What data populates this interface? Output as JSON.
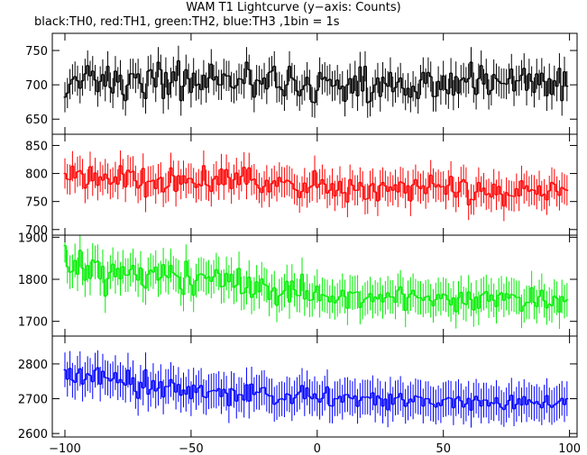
{
  "figure": {
    "title": "WAM T1 Lightcurve (y−axis: Counts)",
    "subtitle": "black:TH0, red:TH1, green:TH2, blue:TH3 ,1bin = 1s"
  },
  "chart_data": {
    "type": "line",
    "style": "histogram steps with vertical error bars",
    "x_range": [
      -100,
      99
    ],
    "xlim": [
      -105,
      103
    ],
    "x_ticks": [
      -100,
      -50,
      0,
      50,
      100
    ],
    "bin_size_s": 1,
    "grid": false,
    "series": [
      {
        "name": "TH0",
        "color": "#000000",
        "ylim": [
          628,
          775
        ],
        "y_ticks": [
          650,
          700,
          750
        ],
        "mean": 700,
        "error": 22,
        "values": [
          682,
          688,
          701,
          708,
          712,
          706,
          695,
          706,
          716,
          728,
          713,
          720,
          707,
          690,
          705,
          715,
          698,
          727,
          696,
          688,
          720,
          704,
          714,
          686,
          677,
          700,
          716,
          716,
          710,
          716,
          702,
          689,
          680,
          720,
          722,
          710,
          697,
          733,
          722,
          680,
          718,
          686,
          703,
          719,
          706,
          735,
          677,
          698,
          722,
          709,
          689,
          717,
          699,
          701,
          693,
          714,
          696,
          710,
          730,
          707,
          712,
          700,
          700,
          716,
          713,
          713,
          697,
          695,
          699,
          709,
          708,
          702,
          733,
          722,
          700,
          682,
          707,
          706,
          701,
          710,
          694,
          718,
          720,
          727,
          696,
          697,
          693,
          684,
          700,
          727,
          710,
          707,
          691,
          684,
          693,
          699,
          711,
          700,
          675,
          674,
          692,
          718,
          708,
          711,
          706,
          708,
          698,
          699,
          707,
          694,
          698,
          676,
          700,
          709,
          688,
          713,
          684,
          726,
          691,
          727,
          674,
          676,
          689,
          700,
          710,
          683,
          711,
          702,
          698,
          718,
          690,
          696,
          704,
          710,
          695,
          685,
          695,
          682,
          698,
          690,
          680,
          707,
          718,
          702,
          718,
          712,
          683,
          683,
          705,
          693,
          713,
          693,
          687,
          717,
          685,
          712,
          688,
          707,
          710,
          704,
          709,
          733,
          696,
          686,
          709,
          728,
          701,
          716,
          686,
          692,
          715,
          709,
          705,
          702,
          702,
          701,
          709,
          723,
          691,
          706,
          706,
          714,
          724,
          692,
          716,
          705,
          689,
          716,
          700,
          717,
          705,
          684,
          709,
          686,
          706,
          698,
          724,
          677,
          719,
          698
        ]
      },
      {
        "name": "TH1",
        "color": "#ff0000",
        "ylim": [
          690,
          870
        ],
        "y_ticks": [
          700,
          750,
          800,
          850
        ],
        "mean": 777,
        "error": 27,
        "values": [
          800,
          790,
          789,
          813,
          792,
          803,
          805,
          799,
          774,
          781,
          812,
          787,
          801,
          779,
          794,
          788,
          799,
          791,
          781,
          784,
          794,
          781,
          814,
          799,
          776,
          806,
          802,
          804,
          787,
          774,
          779,
          809,
          758,
          786,
          786,
          788,
          773,
          790,
          793,
          767,
          774,
          777,
          810,
          796,
          768,
          796,
          781,
          796,
          783,
          791,
          791,
          783,
          775,
          781,
          778,
          814,
          780,
          778,
          768,
          790,
          795,
          780,
          808,
          780,
          807,
          793,
          773,
          789,
          801,
          780,
          795,
          811,
          781,
          810,
          788,
          790,
          780,
          774,
          766,
          777,
          788,
          767,
          782,
          787,
          777,
          793,
          785,
          784,
          788,
          786,
          782,
          772,
          770,
          757,
          768,
          783,
          766,
          775,
          778,
          805,
          775,
          781,
          789,
          781,
          765,
          770,
          782,
          760,
          770,
          786,
          765,
          766,
          749,
          789,
          779,
          770,
          770,
          784,
          777,
          754,
          755,
          778,
          782,
          767,
          751,
          779,
          784,
          778,
          768,
          776,
          770,
          780,
          767,
          785,
          783,
          765,
          778,
          751,
          780,
          789,
          777,
          773,
          778,
          764,
          775,
          797,
          782,
          776,
          780,
          776,
          777,
          763,
          779,
          795,
          767,
          758,
          767,
          785,
          789,
          784,
          744,
          754,
          753,
          767,
          784,
          768,
          774,
          762,
          764,
          758,
          781,
          762,
          777,
          763,
          742,
          766,
          761,
          760,
          759,
          773,
          760,
          787,
          773,
          778,
          768,
          771,
          770,
          763,
          778,
          760,
          763,
          753,
          769,
          784,
          781,
          768,
          761,
          775,
          772,
          770
        ]
      },
      {
        "name": "TH2",
        "color": "#00ee00",
        "ylim": [
          1665,
          1905
        ],
        "y_ticks": [
          1700,
          1800,
          1900
        ],
        "mean": 1770,
        "error": 40,
        "values": [
          1880,
          1830,
          1817,
          1819,
          1845,
          1812,
          1869,
          1826,
          1798,
          1833,
          1802,
          1846,
          1840,
          1843,
          1801,
          1831,
          1760,
          1802,
          1817,
          1836,
          1806,
          1826,
          1801,
          1830,
          1810,
          1810,
          1823,
          1833,
          1811,
          1798,
          1827,
          1785,
          1779,
          1812,
          1822,
          1817,
          1829,
          1798,
          1804,
          1835,
          1809,
          1804,
          1833,
          1815,
          1810,
          1806,
          1777,
          1764,
          1843,
          1807,
          1787,
          1762,
          1797,
          1811,
          1813,
          1810,
          1802,
          1806,
          1795,
          1806,
          1823,
          1814,
          1782,
          1784,
          1814,
          1794,
          1812,
          1781,
          1786,
          1826,
          1766,
          1768,
          1780,
          1805,
          1757,
          1765,
          1794,
          1770,
          1801,
          1788,
          1785,
          1752,
          1772,
          1780,
          1738,
          1761,
          1765,
          1773,
          1795,
          1746,
          1796,
          1775,
          1762,
          1761,
          1812,
          1753,
          1773,
          1750,
          1751,
          1769,
          1784,
          1749,
          1764,
          1761,
          1759,
          1746,
          1760,
          1744,
          1751,
          1759,
          1774,
          1759,
          1731,
          1770,
          1767,
          1769,
          1770,
          1733,
          1745,
          1753,
          1757,
          1766,
          1747,
          1758,
          1753,
          1764,
          1746,
          1756,
          1768,
          1758,
          1758,
          1745,
          1774,
          1782,
          1765,
          1726,
          1757,
          1765,
          1774,
          1761,
          1756,
          1756,
          1750,
          1758,
          1760,
          1749,
          1737,
          1752,
          1764,
          1754,
          1765,
          1762,
          1751,
          1739,
          1756,
          1723,
          1756,
          1769,
          1743,
          1740,
          1770,
          1752,
          1727,
          1758,
          1731,
          1762,
          1766,
          1771,
          1748,
          1763,
          1750,
          1735,
          1763,
          1768,
          1750,
          1766,
          1755,
          1764,
          1762,
          1757,
          1757,
          1724,
          1737,
          1745,
          1745,
          1780,
          1745,
          1735,
          1759,
          1774,
          1749,
          1732,
          1741,
          1737,
          1760,
          1755,
          1722,
          1759,
          1747,
          1751
        ]
      },
      {
        "name": "TH3",
        "color": "#0000ff",
        "ylim": [
          2590,
          2880
        ],
        "y_ticks": [
          2600,
          2700,
          2800
        ],
        "mean": 2715,
        "error": 50,
        "values": [
          2783,
          2756,
          2787,
          2753,
          2747,
          2773,
          2786,
          2742,
          2755,
          2772,
          2767,
          2749,
          2782,
          2789,
          2742,
          2779,
          2761,
          2759,
          2751,
          2757,
          2775,
          2746,
          2755,
          2746,
          2739,
          2782,
          2741,
          2760,
          2721,
          2701,
          2747,
          2731,
          2783,
          2713,
          2727,
          2752,
          2722,
          2730,
          2749,
          2705,
          2735,
          2735,
          2755,
          2745,
          2719,
          2741,
          2710,
          2725,
          2713,
          2735,
          2700,
          2739,
          2718,
          2731,
          2738,
          2706,
          2703,
          2720,
          2722,
          2724,
          2722,
          2729,
          2706,
          2727,
          2716,
          2680,
          2729,
          2724,
          2693,
          2712,
          2711,
          2696,
          2740,
          2693,
          2742,
          2712,
          2719,
          2718,
          2731,
          2732,
          2713,
          2708,
          2708,
          2684,
          2689,
          2698,
          2700,
          2697,
          2714,
          2711,
          2686,
          2702,
          2712,
          2719,
          2738,
          2700,
          2731,
          2706,
          2700,
          2714,
          2700,
          2690,
          2701,
          2716,
          2734,
          2680,
          2679,
          2700,
          2700,
          2707,
          2690,
          2711,
          2712,
          2703,
          2700,
          2708,
          2678,
          2695,
          2705,
          2704,
          2705,
          2702,
          2717,
          2682,
          2708,
          2701,
          2679,
          2699,
          2668,
          2713,
          2684,
          2702,
          2704,
          2715,
          2697,
          2678,
          2688,
          2699,
          2691,
          2708,
          2705,
          2704,
          2679,
          2700,
          2700,
          2686,
          2684,
          2676,
          2688,
          2680,
          2697,
          2699,
          2703,
          2701,
          2674,
          2700,
          2706,
          2694,
          2676,
          2685,
          2701,
          2667,
          2696,
          2707,
          2695,
          2679,
          2696,
          2696,
          2679,
          2689,
          2686,
          2703,
          2686,
          2675,
          2669,
          2682,
          2695,
          2710,
          2671,
          2684,
          2700,
          2682,
          2706,
          2683,
          2697,
          2690,
          2686,
          2692,
          2684,
          2674,
          2690,
          2709,
          2682,
          2675,
          2682,
          2687,
          2693,
          2701,
          2683,
          2700
        ]
      }
    ]
  }
}
